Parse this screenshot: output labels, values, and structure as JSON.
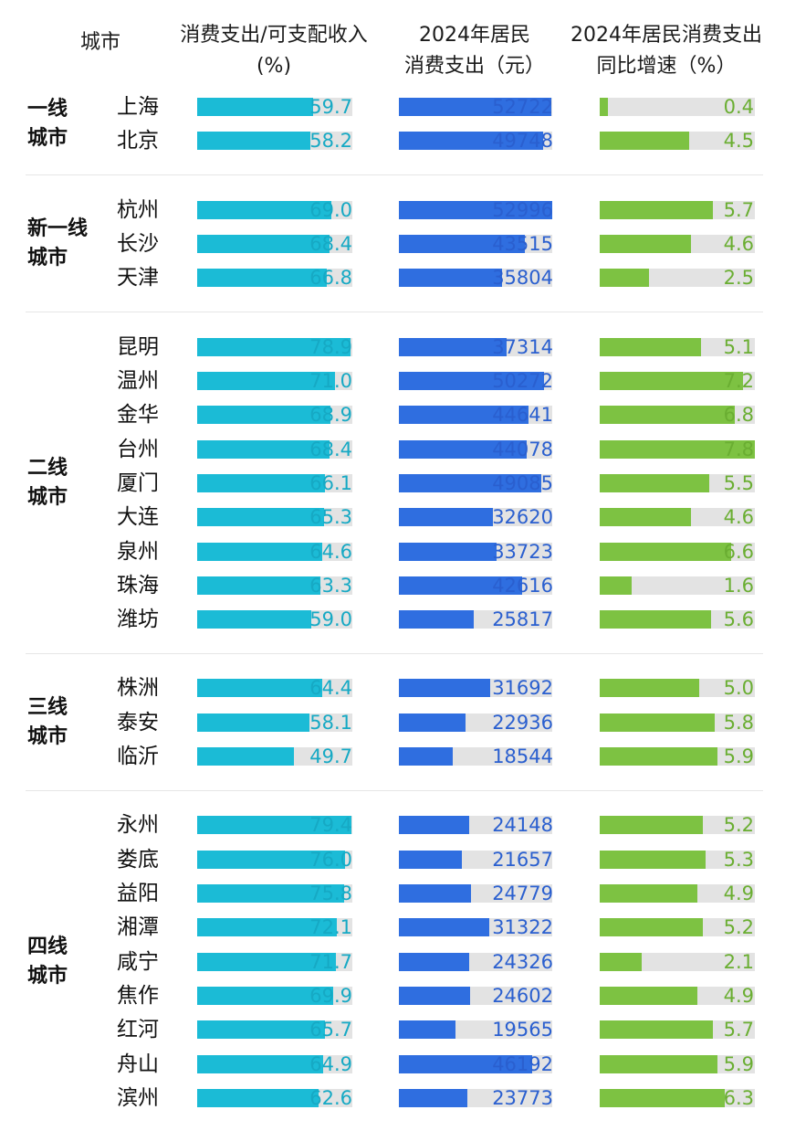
{
  "headers": {
    "city": "城市",
    "col1_line1": "消费支出/可支配收入",
    "col1_line2": "(%)",
    "col2_line1": "2024年居民",
    "col2_line2": "消费支出（元）",
    "col3_line1": "2024年居民消费支出",
    "col3_line2": "同比增速（%）"
  },
  "colors": {
    "ratio_bar": "#1bbbd6",
    "ratio_text": "#16a9c4",
    "spend_bar": "#2f6ee0",
    "spend_text": "#2a5fcf",
    "growth_bar": "#7dc242",
    "growth_text": "#6aae32",
    "track": "#e3e3e3"
  },
  "chart_data": {
    "type": "table",
    "series": [
      {
        "name": "消费支出/可支配收入(%)",
        "key": "ratio",
        "max": 80
      },
      {
        "name": "2024年居民消费支出（元）",
        "key": "spend",
        "max": 53000
      },
      {
        "name": "2024年居民消费支出同比增速（%）",
        "key": "growth",
        "max": 7.8
      }
    ],
    "groups": [
      {
        "line1": "一线",
        "line2": "城市",
        "cities": [
          {
            "name": "上海",
            "ratio": "59.7",
            "spend": "52722",
            "growth": "0.4"
          },
          {
            "name": "北京",
            "ratio": "58.2",
            "spend": "49748",
            "growth": "4.5"
          }
        ]
      },
      {
        "line1": "新一线",
        "line2": "城市",
        "cities": [
          {
            "name": "杭州",
            "ratio": "69.0",
            "spend": "52996",
            "growth": "5.7"
          },
          {
            "name": "长沙",
            "ratio": "68.4",
            "spend": "43515",
            "growth": "4.6"
          },
          {
            "name": "天津",
            "ratio": "66.8",
            "spend": "35804",
            "growth": "2.5"
          }
        ]
      },
      {
        "line1": "二线",
        "line2": "城市",
        "cities": [
          {
            "name": "昆明",
            "ratio": "78.9",
            "spend": "37314",
            "growth": "5.1"
          },
          {
            "name": "温州",
            "ratio": "71.0",
            "spend": "50272",
            "growth": "7.2"
          },
          {
            "name": "金华",
            "ratio": "68.9",
            "spend": "44641",
            "growth": "6.8"
          },
          {
            "name": "台州",
            "ratio": "68.4",
            "spend": "44078",
            "growth": "7.8"
          },
          {
            "name": "厦门",
            "ratio": "66.1",
            "spend": "49085",
            "growth": "5.5"
          },
          {
            "name": "大连",
            "ratio": "65.3",
            "spend": "32620",
            "growth": "4.6"
          },
          {
            "name": "泉州",
            "ratio": "64.6",
            "spend": "33723",
            "growth": "6.6"
          },
          {
            "name": "珠海",
            "ratio": "63.3",
            "spend": "42616",
            "growth": "1.6"
          },
          {
            "name": "潍坊",
            "ratio": "59.0",
            "spend": "25817",
            "growth": "5.6"
          }
        ]
      },
      {
        "line1": "三线",
        "line2": "城市",
        "cities": [
          {
            "name": "株洲",
            "ratio": "64.4",
            "spend": "31692",
            "growth": "5.0"
          },
          {
            "name": "泰安",
            "ratio": "58.1",
            "spend": "22936",
            "growth": "5.8"
          },
          {
            "name": "临沂",
            "ratio": "49.7",
            "spend": "18544",
            "growth": "5.9"
          }
        ]
      },
      {
        "line1": "四线",
        "line2": "城市",
        "cities": [
          {
            "name": "永州",
            "ratio": "79.4",
            "spend": "24148",
            "growth": "5.2"
          },
          {
            "name": "娄底",
            "ratio": "76.0",
            "spend": "21657",
            "growth": "5.3"
          },
          {
            "name": "益阳",
            "ratio": "75.8",
            "spend": "24779",
            "growth": "4.9"
          },
          {
            "name": "湘潭",
            "ratio": "72.1",
            "spend": "31322",
            "growth": "5.2"
          },
          {
            "name": "咸宁",
            "ratio": "71.7",
            "spend": "24326",
            "growth": "2.1"
          },
          {
            "name": "焦作",
            "ratio": "69.9",
            "spend": "24602",
            "growth": "4.9"
          },
          {
            "name": "红河",
            "ratio": "65.7",
            "spend": "19565",
            "growth": "5.7"
          },
          {
            "name": "舟山",
            "ratio": "64.9",
            "spend": "46192",
            "growth": "5.9"
          },
          {
            "name": "滨州",
            "ratio": "62.6",
            "spend": "23773",
            "growth": "6.3"
          }
        ]
      }
    ]
  }
}
